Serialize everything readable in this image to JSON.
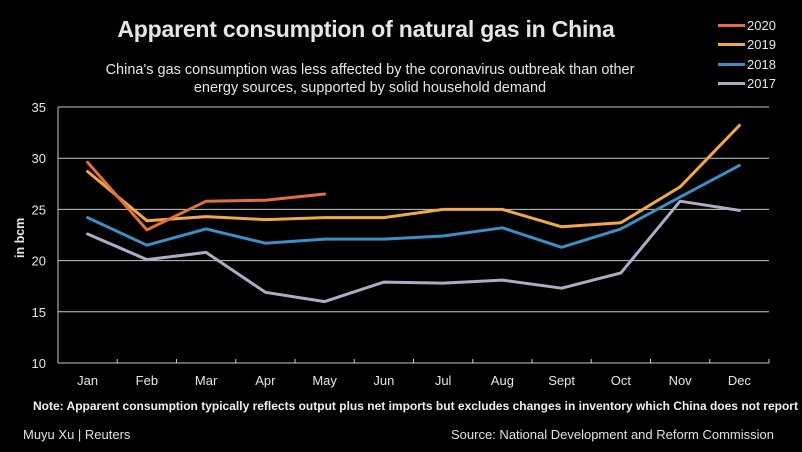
{
  "chart_data": {
    "type": "line",
    "title": "Apparent consumption of natural gas in China",
    "subtitle_lines": [
      "China's gas consumption was less affected by the coronavirus outbreak than other",
      "energy sources, supported by solid household demand"
    ],
    "xlabel": "",
    "ylabel": "in bcm",
    "ylim": [
      10,
      35
    ],
    "yticks": [
      10,
      15,
      20,
      25,
      30,
      35
    ],
    "ytick_labels": [
      "10",
      "15",
      "20",
      "25",
      "30",
      "35"
    ],
    "grid": true,
    "legend_position": "top-right",
    "categories": [
      "Jan",
      "Feb",
      "Mar",
      "Apr",
      "May",
      "Jun",
      "Jul",
      "Aug",
      "Sept",
      "Oct",
      "Nov",
      "Dec"
    ],
    "series": [
      {
        "name": "2020",
        "color": "#e2703c",
        "values": [
          29.6,
          23.0,
          25.8,
          25.9,
          26.5,
          null,
          null,
          null,
          null,
          null,
          null,
          null
        ]
      },
      {
        "name": "2019",
        "color": "#f2a844",
        "values": [
          28.7,
          23.9,
          24.3,
          24.0,
          24.2,
          24.2,
          25.0,
          25.0,
          23.3,
          23.7,
          27.2,
          33.2
        ]
      },
      {
        "name": "2018",
        "color": "#3b8ec6",
        "values": [
          24.2,
          21.5,
          23.1,
          21.7,
          22.1,
          22.1,
          22.4,
          23.2,
          21.3,
          23.1,
          26.2,
          29.3
        ]
      },
      {
        "name": "2017",
        "color": "#b2a9c9",
        "values": [
          22.6,
          20.1,
          20.8,
          16.9,
          16.0,
          17.9,
          17.8,
          18.1,
          17.3,
          18.8,
          25.8,
          24.9
        ]
      }
    ],
    "note": "Note:  Apparent consumption typically reflects output plus net imports but excludes changes in inventory which China does not report",
    "credit": "Muyu Xu | Reuters",
    "source": "Source: National Development and Reform Commission"
  },
  "colors": {
    "background": "#000000",
    "gridline": "#c8c8c8",
    "text": "#e6e6e6"
  }
}
